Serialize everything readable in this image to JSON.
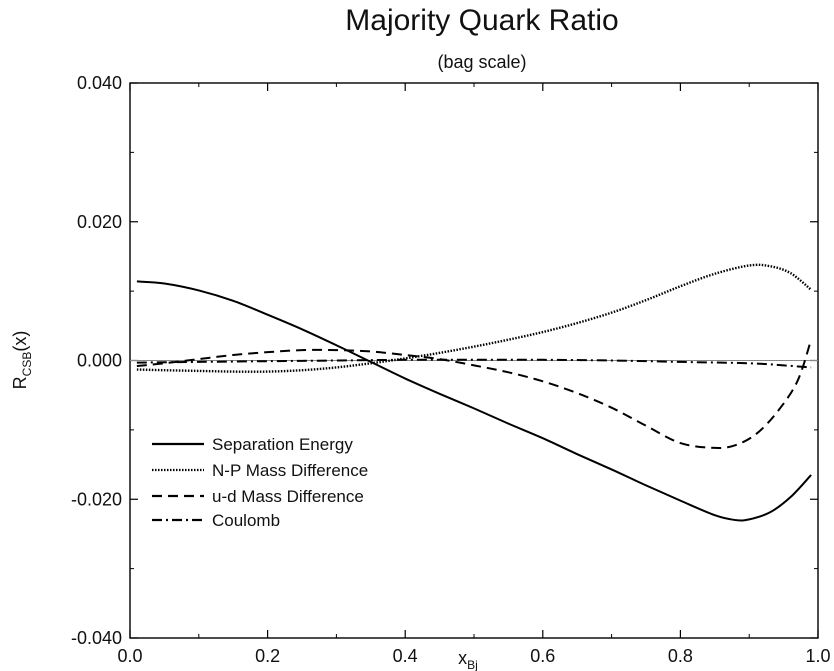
{
  "chart_data": {
    "type": "line",
    "title": "Majority Quark  Ratio",
    "subtitle": "(bag scale)",
    "xlabel": {
      "main": "x",
      "sub": "Bj"
    },
    "ylabel": {
      "main": "R",
      "sub": "CSB",
      "suffix": "(x)"
    },
    "xlim": [
      0.0,
      1.0
    ],
    "ylim": [
      -0.04,
      0.04
    ],
    "x_ticks": [
      0.0,
      0.2,
      0.4,
      0.6,
      0.8,
      1.0
    ],
    "x_tick_labels": [
      "0.0",
      "0.2",
      "0.4",
      "0.6",
      "0.8",
      "1.0"
    ],
    "y_ticks": [
      -0.04,
      -0.02,
      0.0,
      0.02,
      0.04
    ],
    "y_tick_labels": [
      "-0.040",
      "-0.020",
      "0.000",
      "0.020",
      "0.040"
    ],
    "zero_line": true,
    "grid": false,
    "legend_position": "lower-left",
    "series": [
      {
        "name": "Separation Energy",
        "style": "solid",
        "x": [
          0.01,
          0.05,
          0.1,
          0.15,
          0.2,
          0.25,
          0.3,
          0.35,
          0.4,
          0.45,
          0.5,
          0.55,
          0.6,
          0.65,
          0.7,
          0.75,
          0.8,
          0.85,
          0.88,
          0.9,
          0.93,
          0.96,
          0.99
        ],
        "y": [
          0.0114,
          0.0111,
          0.0101,
          0.0086,
          0.0066,
          0.0045,
          0.0022,
          -0.0002,
          -0.0026,
          -0.0048,
          -0.0069,
          -0.0091,
          -0.0112,
          -0.0135,
          -0.0157,
          -0.018,
          -0.0202,
          -0.0223,
          -0.023,
          -0.0229,
          -0.0219,
          -0.0197,
          -0.0165
        ]
      },
      {
        "name": "N-P Mass Difference",
        "style": "dotted",
        "x": [
          0.01,
          0.05,
          0.1,
          0.15,
          0.2,
          0.25,
          0.3,
          0.35,
          0.4,
          0.45,
          0.5,
          0.55,
          0.6,
          0.65,
          0.7,
          0.75,
          0.8,
          0.85,
          0.9,
          0.93,
          0.96,
          0.99
        ],
        "y": [
          -0.0013,
          -0.0014,
          -0.0015,
          -0.0016,
          -0.0016,
          -0.0014,
          -0.001,
          -0.0004,
          0.0003,
          0.0011,
          0.002,
          0.003,
          0.0041,
          0.0054,
          0.0069,
          0.0087,
          0.0107,
          0.0125,
          0.0137,
          0.0136,
          0.0126,
          0.0102
        ]
      },
      {
        "name": "u-d Mass Difference",
        "style": "dashed",
        "x": [
          0.01,
          0.05,
          0.1,
          0.15,
          0.2,
          0.25,
          0.3,
          0.35,
          0.4,
          0.45,
          0.5,
          0.55,
          0.6,
          0.65,
          0.7,
          0.75,
          0.8,
          0.85,
          0.88,
          0.91,
          0.94,
          0.97,
          0.99
        ],
        "y": [
          -0.0008,
          -0.0004,
          0.0002,
          0.0008,
          0.0012,
          0.0015,
          0.0015,
          0.0013,
          0.0008,
          0.0002,
          -0.0007,
          -0.0017,
          -0.003,
          -0.0047,
          -0.0068,
          -0.0094,
          -0.0119,
          -0.0126,
          -0.0122,
          -0.0106,
          -0.0075,
          -0.003,
          0.003
        ]
      },
      {
        "name": "Coulomb",
        "style": "dashdot",
        "x": [
          0.01,
          0.1,
          0.2,
          0.3,
          0.4,
          0.5,
          0.6,
          0.7,
          0.8,
          0.9,
          0.95,
          0.99
        ],
        "y": [
          -0.0003,
          -0.0002,
          -0.0001,
          0.0,
          0.0001,
          0.0001,
          0.0001,
          0.0,
          -0.0002,
          -0.0004,
          -0.0007,
          -0.001
        ]
      }
    ]
  }
}
